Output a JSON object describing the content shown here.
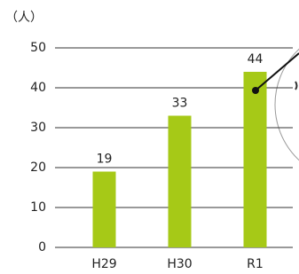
{
  "chart_data": {
    "type": "bar",
    "y_axis_label": "（人）",
    "categories": [
      "H29",
      "H30",
      "R1"
    ],
    "values": [
      19,
      33,
      44
    ],
    "color": "#a6c917",
    "ylim": [
      0,
      50
    ],
    "yticks": [
      0,
      10,
      20,
      30,
      40,
      50
    ],
    "grid": true
  }
}
